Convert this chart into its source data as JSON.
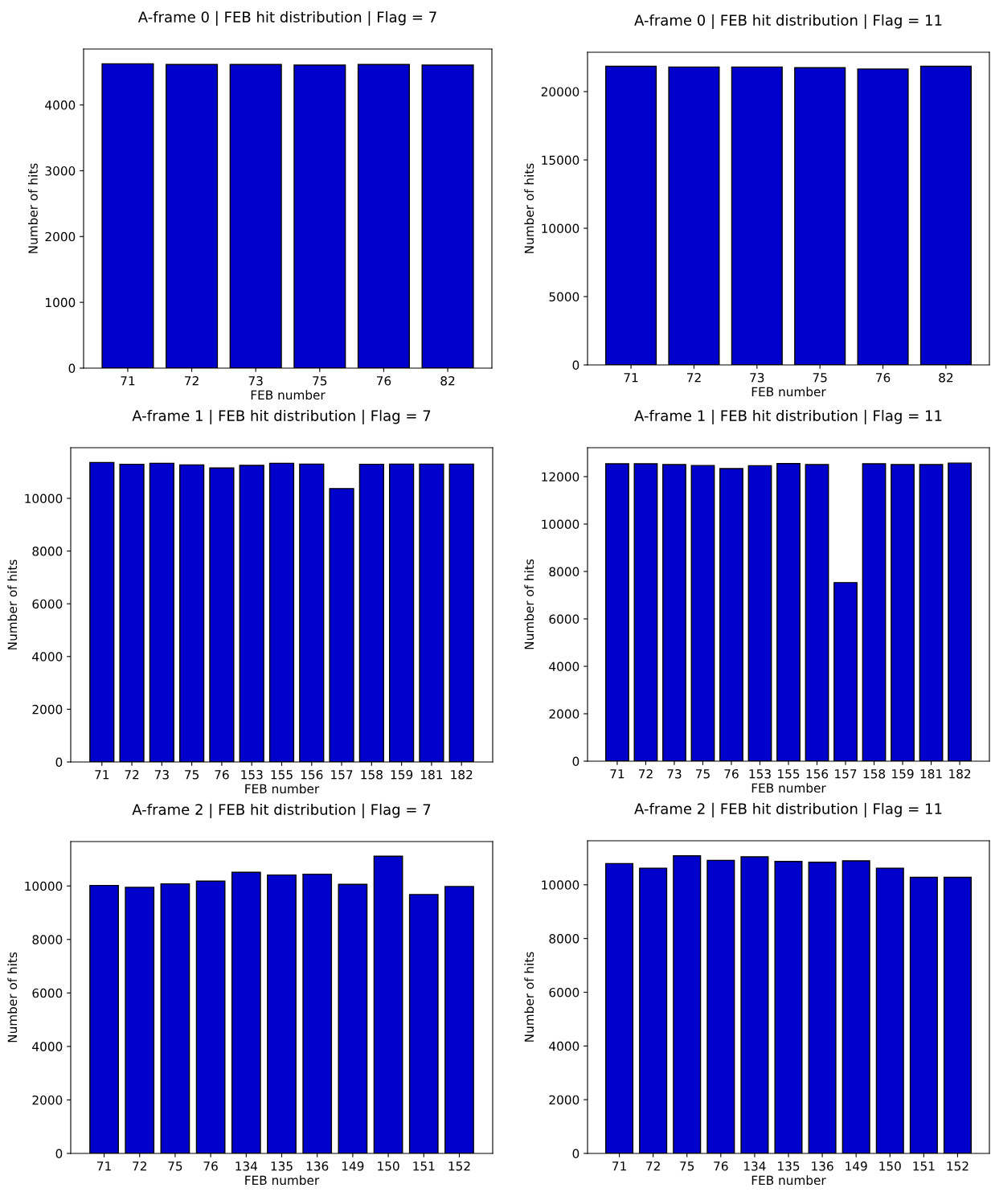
{
  "chart_data": [
    {
      "type": "bar",
      "title": "A-frame 0 | FEB hit distribution | Flag = 7",
      "xlabel": "FEB number",
      "ylabel": "Number of hits",
      "color": "#0000cc",
      "grid": false,
      "ylim": [
        0,
        4850
      ],
      "yticks": [
        0,
        1000,
        2000,
        3000,
        4000
      ],
      "categories": [
        "71",
        "72",
        "73",
        "75",
        "76",
        "82"
      ],
      "values": [
        4625,
        4615,
        4615,
        4605,
        4615,
        4605
      ]
    },
    {
      "type": "bar",
      "title": "A-frame 0 | FEB hit distribution | Flag = 11",
      "xlabel": "FEB number",
      "ylabel": "Number of hits",
      "color": "#0000cc",
      "grid": false,
      "ylim": [
        0,
        22880
      ],
      "yticks": [
        0,
        5000,
        10000,
        15000,
        20000
      ],
      "categories": [
        "71",
        "72",
        "73",
        "75",
        "76",
        "82"
      ],
      "values": [
        21850,
        21800,
        21800,
        21750,
        21650,
        21850
      ]
    },
    {
      "type": "bar",
      "title": "A-frame 1 | FEB hit distribution | Flag = 7",
      "xlabel": "FEB number",
      "ylabel": "Number of hits",
      "color": "#0000cc",
      "grid": false,
      "ylim": [
        0,
        11920
      ],
      "yticks": [
        0,
        2000,
        4000,
        6000,
        8000,
        10000
      ],
      "categories": [
        "71",
        "72",
        "73",
        "75",
        "76",
        "153",
        "155",
        "156",
        "157",
        "158",
        "159",
        "181",
        "182"
      ],
      "values": [
        11360,
        11290,
        11330,
        11270,
        11150,
        11250,
        11330,
        11300,
        10370,
        11290,
        11300,
        11300,
        11300
      ]
    },
    {
      "type": "bar",
      "title": "A-frame 1 | FEB hit distribution | Flag = 11",
      "xlabel": "FEB number",
      "ylabel": "Number of hits",
      "color": "#0000cc",
      "grid": false,
      "ylim": [
        0,
        13220
      ],
      "yticks": [
        0,
        2000,
        4000,
        6000,
        8000,
        10000,
        12000
      ],
      "categories": [
        "71",
        "72",
        "73",
        "75",
        "76",
        "153",
        "155",
        "156",
        "157",
        "158",
        "159",
        "181",
        "182"
      ],
      "values": [
        12540,
        12540,
        12510,
        12470,
        12340,
        12460,
        12550,
        12510,
        7530,
        12540,
        12510,
        12510,
        12570
      ]
    },
    {
      "type": "bar",
      "title": "A-frame 2 | FEB hit distribution | Flag = 7",
      "xlabel": "FEB number",
      "ylabel": "Number of hits",
      "color": "#0000cc",
      "grid": false,
      "ylim": [
        0,
        11660
      ],
      "yticks": [
        0,
        2000,
        4000,
        6000,
        8000,
        10000
      ],
      "categories": [
        "71",
        "72",
        "75",
        "76",
        "134",
        "135",
        "136",
        "149",
        "150",
        "151",
        "152"
      ],
      "values": [
        10020,
        9950,
        10080,
        10180,
        10510,
        10410,
        10440,
        10060,
        11110,
        9680,
        9980
      ]
    },
    {
      "type": "bar",
      "title": "A-frame 2 | FEB hit distribution | Flag = 11",
      "xlabel": "FEB number",
      "ylabel": "Number of hits",
      "color": "#0000cc",
      "grid": false,
      "ylim": [
        0,
        11640
      ],
      "yticks": [
        0,
        2000,
        4000,
        6000,
        8000,
        10000
      ],
      "categories": [
        "71",
        "72",
        "75",
        "76",
        "134",
        "135",
        "136",
        "149",
        "150",
        "151",
        "152"
      ],
      "values": [
        10790,
        10620,
        11080,
        10910,
        11040,
        10870,
        10840,
        10890,
        10620,
        10280,
        10280
      ]
    }
  ]
}
